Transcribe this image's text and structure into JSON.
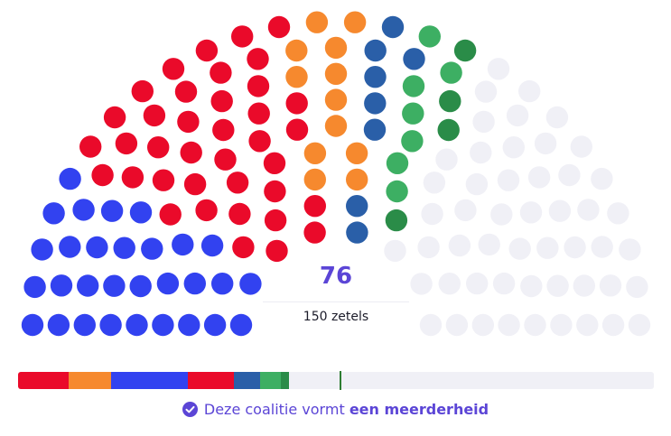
{
  "chart_data": {
    "type": "parliament",
    "total_seats": 150,
    "majority": 76,
    "coalition_seats": 76,
    "parties": [
      {
        "seats": 30,
        "color": "#3242f0",
        "in_coalition": false
      },
      {
        "seats": 38,
        "color": "#ea0a2a",
        "in_coalition": false
      },
      {
        "seats": 12,
        "color": "#f6892e",
        "in_coalition": false
      },
      {
        "seats": 8,
        "color": "#2a5fa8",
        "in_coalition": false
      },
      {
        "seats": 7,
        "color": "#3daf63",
        "in_coalition": false
      },
      {
        "seats": 4,
        "color": "#2a8c48",
        "in_coalition": false
      },
      {
        "seats": 51,
        "color": "#f0f0f6",
        "in_coalition": false
      }
    ],
    "bar": [
      {
        "seats": 12,
        "color": "#ea0a2a"
      },
      {
        "seats": 10,
        "color": "#f6892e"
      },
      {
        "seats": 18,
        "color": "#3242f0"
      },
      {
        "seats": 11,
        "color": "#ea0a2a"
      },
      {
        "seats": 6,
        "color": "#2a5fa8"
      },
      {
        "seats": 5,
        "color": "#3daf63"
      },
      {
        "seats": 2,
        "color": "#2a8c48"
      }
    ],
    "majority_line_color": "#2e7d32"
  },
  "center": {
    "number": "76",
    "seats_label": "150 zetels"
  },
  "status": {
    "icon": "check-circle-icon",
    "text": "Deze coalitie vormt",
    "highlight": "een meerderheid",
    "color": "#5b45d6"
  }
}
